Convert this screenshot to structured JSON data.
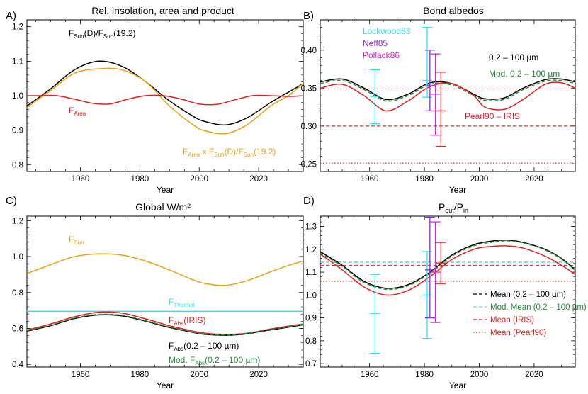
{
  "figure": {
    "x_axis_label": "Year",
    "x_ticks": [
      1960,
      1980,
      2000,
      2020
    ],
    "x_range": [
      1942,
      2035
    ]
  },
  "chart_data": [
    {
      "type": "line",
      "letter": "A)",
      "title": "Rel. insolation, area and product",
      "xlabel": "Year",
      "xlim": [
        1942,
        2035
      ],
      "ylim": [
        0.78,
        1.22
      ],
      "yticks": [
        0.8,
        0.9,
        1.0,
        1.1,
        1.2
      ],
      "ytick_labels": [
        "0.8",
        "0.9",
        "1.0",
        "1.1",
        "1.2"
      ],
      "series": [
        {
          "name": "F_Sun(D)/F_Sun(19.2)",
          "color": "#000000",
          "dash": "solid",
          "x": [
            1942,
            1950,
            1958,
            1966,
            1974,
            1982,
            1990,
            1998,
            2002,
            2009,
            2016,
            2024,
            2030,
            2035
          ],
          "y": [
            0.97,
            1.02,
            1.075,
            1.1,
            1.085,
            1.04,
            0.985,
            0.94,
            0.925,
            0.915,
            0.935,
            0.98,
            1.01,
            1.035
          ]
        },
        {
          "name": "F_Area x F_Sun(D)/F_Sun(19.2)",
          "color": "#e8a21c",
          "dash": "solid",
          "x": [
            1942,
            1950,
            1958,
            1966,
            1974,
            1982,
            1990,
            1998,
            2002,
            2009,
            2016,
            2024,
            2030,
            2035
          ],
          "y": [
            0.965,
            1.015,
            1.065,
            1.078,
            1.075,
            1.04,
            0.97,
            0.915,
            0.898,
            0.89,
            0.915,
            0.97,
            1.0,
            1.035
          ]
        },
        {
          "name": "F_Area",
          "color": "#e02020",
          "dash": "solid",
          "x": [
            1942,
            1946,
            1952,
            1958,
            1964,
            1970,
            1976,
            1982,
            1988,
            1994,
            2000,
            2006,
            2012,
            2018,
            2024,
            2030,
            2035
          ],
          "y": [
            1.0,
            1.0,
            1.0,
            0.99,
            0.978,
            0.976,
            0.99,
            1.0,
            1.0,
            0.99,
            0.976,
            0.975,
            0.988,
            1.0,
            1.0,
            0.998,
            1.0
          ]
        }
      ],
      "annotations": [
        {
          "main": "F",
          "sub": "Sun",
          "rest": "(D)/F",
          "sub2": "Sun",
          "rest2": "(19.2)",
          "color": "#000000"
        },
        {
          "main": "F",
          "sub": "Area",
          "color": "#e02020"
        },
        {
          "main": "F",
          "sub": "Area",
          "rest": " x F",
          "sub2": "Sun",
          "rest2": "(D)/F",
          "sub3": "Sun",
          "rest3": "(19.2)",
          "color": "#e8a21c"
        }
      ]
    },
    {
      "type": "line",
      "letter": "B)",
      "title": "Bond albedos",
      "xlabel": "Year",
      "xlim": [
        1942,
        2035
      ],
      "ylim": [
        0.24,
        0.44
      ],
      "yticks": [
        0.25,
        0.3,
        0.35,
        0.4
      ],
      "ytick_labels": [
        "0.25",
        "0.30",
        "0.35",
        "0.40"
      ],
      "series": [
        {
          "name": "0.2 - 100 µm",
          "color": "#000000",
          "dash": "solid",
          "x": [
            1942,
            1950,
            1958,
            1966,
            1974,
            1982,
            1990,
            1998,
            2002,
            2009,
            2016,
            2024,
            2030,
            2035
          ],
          "y": [
            0.358,
            0.362,
            0.35,
            0.335,
            0.342,
            0.357,
            0.356,
            0.342,
            0.336,
            0.337,
            0.35,
            0.361,
            0.362,
            0.358
          ]
        },
        {
          "name": "Mod. 0.2 - 100 µm",
          "color": "#2a8a3c",
          "dash": "dashed",
          "x": [
            1942,
            1950,
            1958,
            1966,
            1974,
            1982,
            1990,
            1998,
            2002,
            2009,
            2016,
            2024,
            2030,
            2035
          ],
          "y": [
            0.356,
            0.36,
            0.348,
            0.333,
            0.34,
            0.355,
            0.354,
            0.34,
            0.334,
            0.335,
            0.348,
            0.359,
            0.36,
            0.356
          ]
        },
        {
          "name": "IRIS",
          "color": "#e02020",
          "dash": "solid",
          "x": [
            1942,
            1950,
            1958,
            1966,
            1974,
            1982,
            1990,
            1998,
            2002,
            2009,
            2016,
            2024,
            2030,
            2035
          ],
          "y": [
            0.35,
            0.355,
            0.34,
            0.32,
            0.333,
            0.352,
            0.356,
            0.34,
            0.325,
            0.322,
            0.335,
            0.355,
            0.357,
            0.35
          ]
        }
      ],
      "hlines": [
        {
          "name": "0.349",
          "y": 0.349,
          "color": "#e02020",
          "dash": "dotted"
        },
        {
          "name": "0.300",
          "y": 0.3,
          "color": "#e02020",
          "dash": "dashed"
        },
        {
          "name": "0.251",
          "y": 0.251,
          "color": "#e02020",
          "dash": "dotted"
        }
      ],
      "error_bars": [
        {
          "name": "Lockwood83",
          "x": 1962,
          "y": 0.339,
          "ylo": 0.303,
          "yhi": 0.374,
          "color": "#2ee0e8"
        },
        {
          "name": "Lockwood83 (2)",
          "x": 1981,
          "y": 0.36,
          "ylo": 0.338,
          "yhi": 0.43,
          "color": "#2ee0e8"
        },
        {
          "name": "Neff85",
          "x": 1982,
          "y": 0.353,
          "ylo": 0.32,
          "yhi": 0.4,
          "color": "#8a2be2"
        },
        {
          "name": "Pollack86",
          "x": 1984,
          "y": 0.342,
          "ylo": 0.288,
          "yhi": 0.395,
          "color": "#e020e0"
        },
        {
          "name": "Pearl90",
          "x": 1986,
          "y": 0.32,
          "ylo": 0.273,
          "yhi": 0.371,
          "color": "#e02020"
        }
      ],
      "labels": [
        {
          "text": "Lockwood83",
          "color": "#2ee0e8"
        },
        {
          "text": "Neff85",
          "color": "#8a2be2"
        },
        {
          "text": "Pollack86",
          "color": "#e020e0"
        },
        {
          "text": "0.2 – 100 µm",
          "color": "#000000"
        },
        {
          "text": "Mod. 0.2 – 100 µm",
          "color": "#2a8a3c"
        },
        {
          "text": "Pearl90 – IRIS",
          "color": "#e02020"
        }
      ]
    },
    {
      "type": "line",
      "letter": "C)",
      "title": "Global W/m²",
      "xlabel": "Year",
      "xlim": [
        1942,
        2035
      ],
      "ylim": [
        0.385,
        1.225
      ],
      "yticks": [
        0.4,
        0.6,
        0.8,
        1.0,
        1.2
      ],
      "ytick_labels": [
        "0.4",
        "0.6",
        "0.8",
        "1.0",
        "1.2"
      ],
      "series": [
        {
          "name": "F_Sun",
          "color": "#e8a21c",
          "dash": "solid",
          "x": [
            1942,
            1950,
            1958,
            1966,
            1974,
            1982,
            1990,
            1998,
            2002,
            2009,
            2016,
            2024,
            2030,
            2035
          ],
          "y": [
            0.905,
            0.955,
            1.0,
            1.015,
            1.008,
            0.975,
            0.925,
            0.87,
            0.85,
            0.84,
            0.865,
            0.915,
            0.95,
            0.975
          ]
        },
        {
          "name": "F_Thermal",
          "color": "#2ee0e8",
          "dash": "solid",
          "x": [
            1942,
            2035
          ],
          "y": [
            0.695,
            0.695
          ]
        },
        {
          "name": "F_Abs(IRIS)",
          "color": "#e02020",
          "dash": "solid",
          "x": [
            1942,
            1950,
            1958,
            1966,
            1974,
            1982,
            1990,
            1998,
            2002,
            2009,
            2016,
            2024,
            2030,
            2035
          ],
          "y": [
            0.59,
            0.625,
            0.665,
            0.69,
            0.685,
            0.653,
            0.615,
            0.585,
            0.573,
            0.567,
            0.573,
            0.597,
            0.613,
            0.625
          ]
        },
        {
          "name": "F_Abs(0.2 - 100 µm)",
          "color": "#000000",
          "dash": "solid",
          "x": [
            1942,
            1950,
            1958,
            1966,
            1974,
            1982,
            1990,
            1998,
            2002,
            2009,
            2016,
            2024,
            2030,
            2035
          ],
          "y": [
            0.585,
            0.615,
            0.655,
            0.675,
            0.67,
            0.64,
            0.605,
            0.578,
            0.567,
            0.562,
            0.57,
            0.592,
            0.607,
            0.62
          ]
        },
        {
          "name": "Mod. F_Abs(0.2 - 100 µm)",
          "color": "#2a8a3c",
          "dash": "dashed",
          "x": [
            1942,
            1950,
            1958,
            1966,
            1974,
            1982,
            1990,
            1998,
            2002,
            2009,
            2016,
            2024,
            2030,
            2035
          ],
          "y": [
            0.588,
            0.618,
            0.658,
            0.678,
            0.673,
            0.643,
            0.608,
            0.58,
            0.569,
            0.564,
            0.572,
            0.594,
            0.609,
            0.622
          ]
        }
      ],
      "annotations": [
        {
          "main": "F",
          "sub": "Sun",
          "color": "#e8a21c"
        },
        {
          "main": "F",
          "sub": "Thermal",
          "color": "#2ee0e8"
        },
        {
          "main": "F",
          "sub": "Abs",
          "rest": "(IRIS)",
          "color": "#e02020"
        },
        {
          "main": "F",
          "sub": "Abs",
          "rest": "(0.2 – 100 µm)",
          "color": "#000000"
        },
        {
          "main": "Mod. F",
          "sub": "Abs",
          "rest": "(0.2 – 100 µm)",
          "color": "#2a8a3c"
        }
      ]
    },
    {
      "type": "line",
      "letter": "D)",
      "title_main": "P",
      "title_sub": "out",
      "title_mid": "/P",
      "title_sub2": "in",
      "xlabel": "Year",
      "xlim": [
        1942,
        2035
      ],
      "ylim": [
        0.685,
        1.345
      ],
      "yticks": [
        0.7,
        0.8,
        0.9,
        1.0,
        1.1,
        1.2,
        1.3
      ],
      "ytick_labels": [
        "0.7",
        "0.8",
        "0.9",
        "1.0",
        "1.1",
        "1.2",
        "1.3"
      ],
      "series": [
        {
          "name": "0.2 - 100 µm",
          "color": "#000000",
          "dash": "solid",
          "x": [
            1942,
            1950,
            1958,
            1966,
            1974,
            1982,
            1990,
            1998,
            2004,
            2010,
            2016,
            2024,
            2030,
            2035
          ],
          "y": [
            1.19,
            1.13,
            1.06,
            1.03,
            1.045,
            1.1,
            1.175,
            1.22,
            1.235,
            1.24,
            1.23,
            1.2,
            1.16,
            1.11
          ]
        },
        {
          "name": "Mod. 0.2 - 100 µm",
          "color": "#2a8a3c",
          "dash": "dashed",
          "x": [
            1942,
            1950,
            1958,
            1966,
            1974,
            1982,
            1990,
            1998,
            2004,
            2010,
            2016,
            2024,
            2030,
            2035
          ],
          "y": [
            1.185,
            1.125,
            1.055,
            1.025,
            1.04,
            1.095,
            1.17,
            1.215,
            1.23,
            1.237,
            1.228,
            1.197,
            1.157,
            1.108
          ]
        },
        {
          "name": "IRIS",
          "color": "#e02020",
          "dash": "solid",
          "x": [
            1942,
            1950,
            1958,
            1966,
            1974,
            1982,
            1990,
            1998,
            2004,
            2010,
            2016,
            2024,
            2030,
            2035
          ],
          "y": [
            1.18,
            1.11,
            1.035,
            1.0,
            1.02,
            1.08,
            1.155,
            1.2,
            1.212,
            1.215,
            1.205,
            1.17,
            1.13,
            1.09
          ]
        }
      ],
      "hlines": [
        {
          "name": "Mean (0.2 - 100 µm)",
          "y": 1.148,
          "color": "#000000",
          "dash": "dashed"
        },
        {
          "name": "Mod. Mean (0.2 - 100 µm)",
          "y": 1.143,
          "color": "#7fd0c8",
          "dash": "dashed"
        },
        {
          "name": "Mean (IRIS)",
          "y": 1.13,
          "color": "#e02020",
          "dash": "dashed"
        },
        {
          "name": "Mean (Pearl90)",
          "y": 1.06,
          "color": "#e02020",
          "dash": "dotted"
        }
      ],
      "error_bars": [
        {
          "name": "Lockwood83",
          "x": 1962,
          "y": 0.92,
          "ylo": 0.745,
          "yhi": 1.09,
          "color": "#2ee0e8"
        },
        {
          "name": "Lockwood83 (2)",
          "x": 1981,
          "y": 1.0,
          "ylo": 0.81,
          "yhi": 1.19,
          "color": "#2ee0e8"
        },
        {
          "name": "Neff85",
          "x": 1982,
          "y": 1.11,
          "ylo": 0.9,
          "yhi": 1.34,
          "color": "#8a2be2"
        },
        {
          "name": "Pollack86",
          "x": 1984,
          "y": 1.1,
          "ylo": 0.88,
          "yhi": 1.32,
          "color": "#e020e0"
        },
        {
          "name": "Pearl90",
          "x": 1986,
          "y": 1.14,
          "ylo": 1.05,
          "yhi": 1.23,
          "color": "#e02020"
        }
      ],
      "legend": [
        {
          "text": "Mean (0.2 – 100 µm)",
          "color": "#000000",
          "line_color": "#000000",
          "dash": "dashed"
        },
        {
          "text": "Mod. Mean (0.2 – 100 µm)",
          "color": "#2a8a3c",
          "line_color": "#7fd0c8",
          "dash": "dashed"
        },
        {
          "text": "Mean (IRIS)",
          "color": "#e02020",
          "line_color": "#e02020",
          "dash": "dashed"
        },
        {
          "text": "Mean (Pearl90)",
          "color": "#e02020",
          "line_color": "#e02020",
          "dash": "dotted"
        }
      ]
    }
  ]
}
